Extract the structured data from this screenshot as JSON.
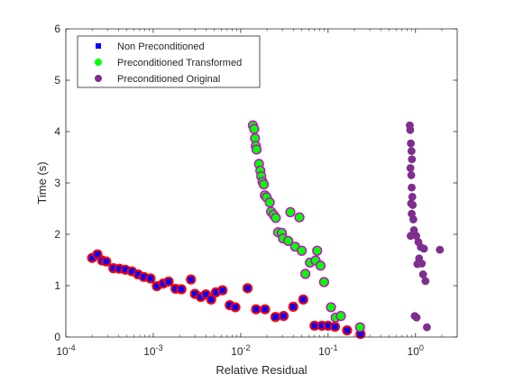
{
  "chart_data": {
    "type": "scatter",
    "xscale": "log",
    "xlim": [
      0.0001,
      3
    ],
    "ylim": [
      0,
      6
    ],
    "xlabel": "Relative Residual",
    "ylabel": "Time (s)",
    "xticks": [
      {
        "value": 0.0001,
        "base": "10",
        "exp": "-4"
      },
      {
        "value": 0.001,
        "base": "10",
        "exp": "-3"
      },
      {
        "value": 0.01,
        "base": "10",
        "exp": "-2"
      },
      {
        "value": 0.1,
        "base": "10",
        "exp": "-1"
      },
      {
        "value": 1,
        "base": "10",
        "exp": "0"
      }
    ],
    "yticks": [
      0,
      1,
      2,
      3,
      4,
      5,
      6
    ],
    "grid": false,
    "legend": {
      "placement": "top-left"
    },
    "series": [
      {
        "name": "Non Preconditioned",
        "marker": "square",
        "color": "#0000ff",
        "ring_color": "#ff0000",
        "points": [
          [
            0.0002,
            1.54
          ],
          [
            0.00023,
            1.61
          ],
          [
            0.00026,
            1.49
          ],
          [
            0.00029,
            1.47
          ],
          [
            0.00035,
            1.34
          ],
          [
            0.00041,
            1.33
          ],
          [
            0.00048,
            1.31
          ],
          [
            0.00057,
            1.28
          ],
          [
            0.00067,
            1.22
          ],
          [
            0.00078,
            1.17
          ],
          [
            0.00093,
            1.14
          ],
          [
            0.0011,
            0.99
          ],
          [
            0.0013,
            1.04
          ],
          [
            0.0015,
            1.08
          ],
          [
            0.0018,
            0.94
          ],
          [
            0.0021,
            0.93
          ],
          [
            0.0027,
            1.12
          ],
          [
            0.003,
            0.84
          ],
          [
            0.0035,
            0.78
          ],
          [
            0.004,
            0.83
          ],
          [
            0.0046,
            0.73
          ],
          [
            0.0052,
            0.87
          ],
          [
            0.0062,
            0.91
          ],
          [
            0.0075,
            0.62
          ],
          [
            0.0087,
            0.58
          ],
          [
            0.012,
            0.95
          ],
          [
            0.015,
            0.54
          ],
          [
            0.019,
            0.54
          ],
          [
            0.025,
            0.39
          ],
          [
            0.031,
            0.41
          ],
          [
            0.04,
            0.59
          ],
          [
            0.052,
            0.73
          ],
          [
            0.07,
            0.22
          ],
          [
            0.085,
            0.22
          ],
          [
            0.1,
            0.22
          ],
          [
            0.12,
            0.2
          ],
          [
            0.165,
            0.13
          ],
          [
            0.235,
            0.06
          ]
        ]
      },
      {
        "name": "Preconditioned Transformed",
        "marker": "circle",
        "color": "#00ff00",
        "ring_color": "#cc00cc",
        "points": [
          [
            0.0138,
            4.12
          ],
          [
            0.0143,
            4.05
          ],
          [
            0.0146,
            3.87
          ],
          [
            0.0149,
            3.72
          ],
          [
            0.0152,
            3.65
          ],
          [
            0.0162,
            3.37
          ],
          [
            0.0168,
            3.24
          ],
          [
            0.0172,
            3.13
          ],
          [
            0.0178,
            3.02
          ],
          [
            0.0184,
            2.97
          ],
          [
            0.0189,
            2.76
          ],
          [
            0.0198,
            2.72
          ],
          [
            0.0215,
            2.62
          ],
          [
            0.0223,
            2.44
          ],
          [
            0.0238,
            2.38
          ],
          [
            0.0252,
            2.32
          ],
          [
            0.0268,
            2.04
          ],
          [
            0.0295,
            2.03
          ],
          [
            0.0305,
            1.92
          ],
          [
            0.035,
            1.87
          ],
          [
            0.037,
            2.43
          ],
          [
            0.042,
            1.76
          ],
          [
            0.047,
            2.33
          ],
          [
            0.05,
            1.68
          ],
          [
            0.055,
            1.23
          ],
          [
            0.062,
            1.45
          ],
          [
            0.072,
            1.49
          ],
          [
            0.075,
            1.68
          ],
          [
            0.082,
            1.39
          ],
          [
            0.09,
            1.07
          ],
          [
            0.108,
            0.58
          ],
          [
            0.122,
            0.38
          ],
          [
            0.14,
            0.41
          ],
          [
            0.232,
            0.19
          ]
        ]
      },
      {
        "name": "Preconditioned Original",
        "marker": "circle",
        "color": "#7e2f8e",
        "points": [
          [
            0.86,
            4.12
          ],
          [
            0.87,
            4.03
          ],
          [
            0.885,
            3.77
          ],
          [
            0.9,
            3.62
          ],
          [
            0.91,
            3.46
          ],
          [
            0.875,
            3.29
          ],
          [
            0.895,
            3.15
          ],
          [
            0.905,
            2.91
          ],
          [
            0.92,
            2.73
          ],
          [
            0.89,
            2.6
          ],
          [
            0.93,
            2.57
          ],
          [
            0.905,
            2.4
          ],
          [
            0.945,
            2.29
          ],
          [
            0.96,
            2.08
          ],
          [
            0.88,
            1.97
          ],
          [
            1.02,
            1.97
          ],
          [
            1.08,
            1.85
          ],
          [
            1.15,
            1.75
          ],
          [
            1.25,
            1.72
          ],
          [
            1.1,
            1.53
          ],
          [
            1.18,
            1.43
          ],
          [
            1.05,
            1.42
          ],
          [
            1.22,
            1.22
          ],
          [
            1.3,
            1.09
          ],
          [
            1.9,
            1.7
          ],
          [
            0.98,
            0.41
          ],
          [
            1.03,
            0.38
          ],
          [
            1.35,
            0.19
          ]
        ]
      }
    ]
  }
}
